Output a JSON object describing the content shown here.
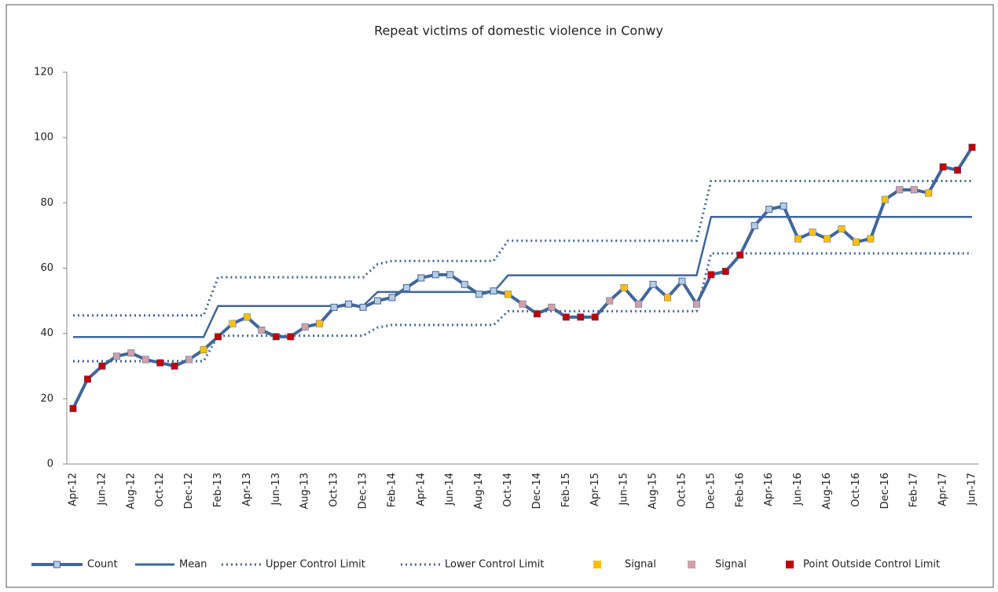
{
  "chart_data": {
    "type": "line",
    "title": "Repeat victims of domestic violence in Conwy",
    "categories": [
      "Apr-12",
      null,
      "Jun-12",
      null,
      "Aug-12",
      null,
      "Oct-12",
      null,
      "Dec-12",
      null,
      "Feb-13",
      null,
      "Apr-13",
      null,
      "Jun-13",
      null,
      "Aug-13",
      null,
      "Oct-13",
      null,
      "Dec-13",
      null,
      "Feb-14",
      null,
      "Apr-14",
      null,
      "Jun-14",
      null,
      "Aug-14",
      null,
      "Oct-14",
      null,
      "Dec-14",
      null,
      "Feb-15",
      null,
      "Apr-15",
      null,
      "Jun-15",
      null,
      "Aug-15",
      null,
      "Oct-15",
      null,
      "Dec-15",
      null,
      "Feb-16",
      null,
      "Apr-16",
      null,
      "Jun-16",
      null,
      "Aug-16",
      null,
      "Oct-16",
      null,
      "Dec-16",
      null,
      "Feb-17",
      null,
      "Apr-17",
      null,
      "Jun-17"
    ],
    "ylim": [
      0,
      120
    ],
    "yticks": [
      0,
      20,
      40,
      60,
      80,
      100,
      120
    ],
    "series": [
      {
        "name": "Count",
        "style": "line-marker",
        "color": "#41669a",
        "marker_color": "#b8cce4",
        "values": [
          17,
          26,
          30,
          33,
          34,
          32,
          31,
          30,
          32,
          35,
          39,
          43,
          45,
          41,
          39,
          39,
          42,
          43,
          48,
          49,
          48,
          50,
          51,
          54,
          57,
          58,
          58,
          55,
          52,
          53,
          52,
          49,
          46,
          48,
          45,
          45,
          45,
          50,
          54,
          49,
          55,
          51,
          56,
          49,
          58,
          59,
          64,
          73,
          78,
          79,
          69,
          71,
          69,
          72,
          68,
          69,
          81,
          84,
          84,
          83,
          91,
          90,
          97
        ]
      },
      {
        "name": "Mean",
        "style": "solid",
        "color": "#41669a",
        "values": [
          38.9,
          38.9,
          38.9,
          38.9,
          38.9,
          38.9,
          38.9,
          38.9,
          38.9,
          38.9,
          48.4,
          48.4,
          48.4,
          48.4,
          48.4,
          48.4,
          48.4,
          48.4,
          48.4,
          48.4,
          48.4,
          52.7,
          52.7,
          52.7,
          52.7,
          52.7,
          52.7,
          52.7,
          52.7,
          52.7,
          57.8,
          57.8,
          57.8,
          57.8,
          57.8,
          57.8,
          57.8,
          57.8,
          57.8,
          57.8,
          57.8,
          57.8,
          57.8,
          57.8,
          75.7,
          75.7,
          75.7,
          75.7,
          75.7,
          75.7,
          75.7,
          75.7,
          75.7,
          75.7,
          75.7,
          75.7,
          75.7,
          75.7,
          75.7,
          75.7,
          75.7,
          75.7,
          75.7
        ]
      },
      {
        "name": "Upper Control Limit",
        "style": "dotted",
        "color": "#41669a",
        "values": [
          45.5,
          45.5,
          45.5,
          45.5,
          45.5,
          45.5,
          45.5,
          45.5,
          45.5,
          45.5,
          57.2,
          57.2,
          57.2,
          57.2,
          57.2,
          57.2,
          57.2,
          57.2,
          57.2,
          57.2,
          57.2,
          61.2,
          62.2,
          62.2,
          62.2,
          62.2,
          62.2,
          62.2,
          62.2,
          62.2,
          68.4,
          68.4,
          68.4,
          68.4,
          68.4,
          68.4,
          68.4,
          68.4,
          68.4,
          68.4,
          68.4,
          68.4,
          68.4,
          68.4,
          86.7,
          86.7,
          86.7,
          86.7,
          86.7,
          86.7,
          86.7,
          86.7,
          86.7,
          86.7,
          86.7,
          86.7,
          86.7,
          86.7,
          86.7,
          86.7,
          86.7,
          86.7,
          86.7
        ]
      },
      {
        "name": "Lower Control Limit",
        "style": "dotted",
        "color": "#41669a",
        "values": [
          31.5,
          31.5,
          31.5,
          31.5,
          31.5,
          31.5,
          31.5,
          31.5,
          31.5,
          31.5,
          39.3,
          39.3,
          39.3,
          39.3,
          39.3,
          39.3,
          39.3,
          39.3,
          39.3,
          39.3,
          39.3,
          41.8,
          42.6,
          42.6,
          42.6,
          42.6,
          42.6,
          42.6,
          42.6,
          42.6,
          46.8,
          46.8,
          46.8,
          46.8,
          46.8,
          46.8,
          46.8,
          46.8,
          46.8,
          46.8,
          46.8,
          46.8,
          46.8,
          46.8,
          64.5,
          64.5,
          64.5,
          64.5,
          64.5,
          64.5,
          64.5,
          64.5,
          64.5,
          64.5,
          64.5,
          64.5,
          64.5,
          64.5,
          64.5,
          64.5,
          64.5,
          64.5,
          64.5
        ]
      },
      {
        "name": "Signal",
        "style": "marker",
        "color": "#ffc000",
        "values": [
          null,
          null,
          null,
          null,
          null,
          null,
          null,
          null,
          null,
          35,
          null,
          43,
          45,
          null,
          null,
          null,
          null,
          43,
          null,
          null,
          null,
          null,
          null,
          null,
          null,
          null,
          null,
          null,
          null,
          null,
          52,
          null,
          null,
          null,
          null,
          null,
          null,
          null,
          54,
          null,
          null,
          51,
          null,
          null,
          null,
          null,
          null,
          null,
          null,
          null,
          69,
          71,
          69,
          72,
          68,
          69,
          81,
          null,
          null,
          83,
          null,
          null,
          null
        ]
      },
      {
        "name": "Signal",
        "style": "marker",
        "color": "#d0a0a8",
        "values": [
          null,
          null,
          null,
          33,
          34,
          32,
          null,
          null,
          32,
          null,
          null,
          null,
          null,
          41,
          null,
          null,
          42,
          null,
          null,
          null,
          null,
          null,
          null,
          null,
          null,
          null,
          null,
          null,
          null,
          null,
          null,
          49,
          null,
          48,
          null,
          null,
          null,
          50,
          null,
          49,
          null,
          null,
          null,
          49,
          null,
          null,
          null,
          null,
          null,
          null,
          null,
          null,
          null,
          null,
          null,
          null,
          null,
          84,
          84,
          null,
          null,
          null,
          null
        ]
      },
      {
        "name": "Point Outside Control Limit",
        "style": "marker",
        "color": "#c00000",
        "values": [
          17,
          26,
          30,
          null,
          null,
          null,
          31,
          30,
          null,
          null,
          39,
          null,
          null,
          null,
          39,
          39,
          null,
          null,
          null,
          null,
          null,
          null,
          null,
          null,
          null,
          null,
          null,
          null,
          null,
          null,
          null,
          null,
          46,
          null,
          45,
          45,
          45,
          null,
          null,
          null,
          null,
          null,
          null,
          null,
          58,
          59,
          64,
          null,
          null,
          null,
          null,
          null,
          null,
          null,
          null,
          null,
          null,
          null,
          null,
          null,
          91,
          90,
          97
        ]
      }
    ]
  }
}
